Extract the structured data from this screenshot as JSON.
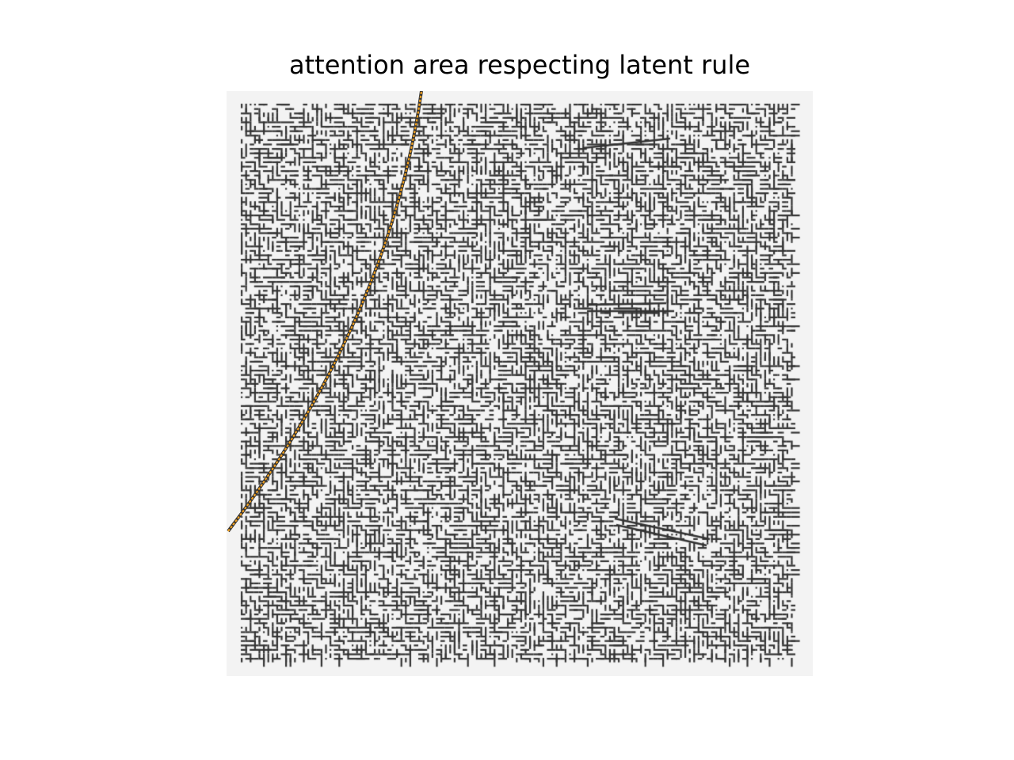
{
  "figure": {
    "title": "attention area respecting latent rule"
  },
  "colors": {
    "background": "#f3f3f3",
    "pattern": "#333333",
    "highlight": "#f0a020"
  },
  "icons": {
    "pattern": "labyrinth-texture",
    "highlight": "curved-band"
  }
}
